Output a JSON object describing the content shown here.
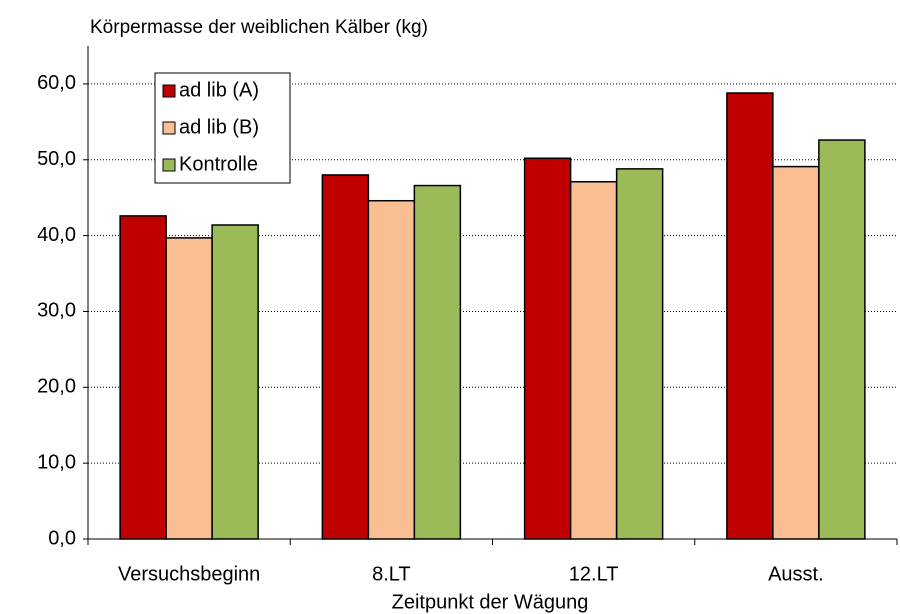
{
  "chart_data": {
    "type": "bar",
    "title": "Körpermasse der weiblichen Kälber (kg)",
    "x_label": "Zeitpunkt der Wägung",
    "categories": [
      "Versuchsbeginn",
      "8.LT",
      "12.LT",
      "Ausst."
    ],
    "series": [
      {
        "name": "ad lib (A)",
        "color": "#c00000",
        "values": [
          42.6,
          48.0,
          50.2,
          58.8
        ]
      },
      {
        "name": "ad lib (B)",
        "color": "#f9be92",
        "values": [
          39.7,
          44.6,
          47.1,
          49.1
        ]
      },
      {
        "name": "Kontrolle",
        "color": "#9bbb59",
        "values": [
          41.4,
          46.6,
          48.8,
          52.6
        ]
      }
    ],
    "ylim": [
      0,
      65
    ],
    "yticks": [
      {
        "value": 0,
        "label": "0,0"
      },
      {
        "value": 10,
        "label": "10,0"
      },
      {
        "value": 20,
        "label": "20,0"
      },
      {
        "value": 30,
        "label": "30,0"
      },
      {
        "value": 40,
        "label": "40,0"
      },
      {
        "value": 50,
        "label": "50,0"
      },
      {
        "value": 60,
        "label": "60,0"
      }
    ],
    "grid": true,
    "legend": "upper left"
  }
}
